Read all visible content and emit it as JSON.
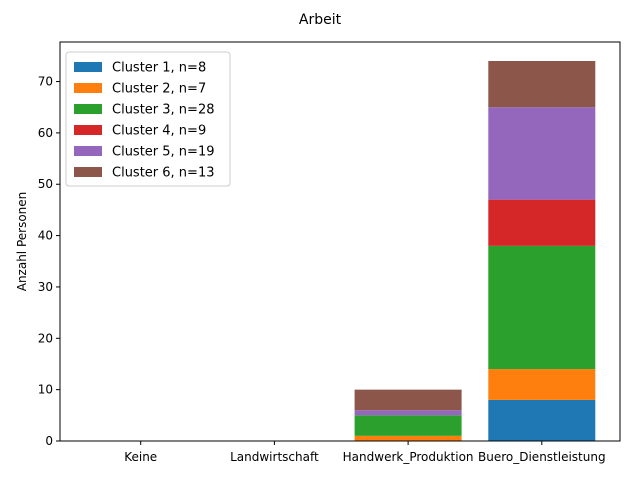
{
  "chart_data": {
    "type": "bar",
    "stacked": true,
    "title": "Arbeit",
    "xlabel": "",
    "ylabel": "Anzahl Personen",
    "categories": [
      "Keine",
      "Landwirtschaft",
      "Handwerk_Produktion",
      "Buero_Dienstleistung"
    ],
    "ylim": [
      0,
      77.7
    ],
    "yticks": [
      0,
      10,
      20,
      30,
      40,
      50,
      60,
      70
    ],
    "grid": false,
    "legend_position": "top-left",
    "series": [
      {
        "name": "Cluster 1, n=8",
        "color": "#1f77b4",
        "values": [
          0,
          0,
          0,
          8
        ]
      },
      {
        "name": "Cluster 2, n=7",
        "color": "#ff7f0e",
        "values": [
          0,
          0,
          1,
          6
        ]
      },
      {
        "name": "Cluster 3, n=28",
        "color": "#2ca02c",
        "values": [
          0,
          0,
          4,
          24
        ]
      },
      {
        "name": "Cluster 4, n=9",
        "color": "#d62728",
        "values": [
          0,
          0,
          0,
          9
        ]
      },
      {
        "name": "Cluster 5, n=19",
        "color": "#9467bd",
        "values": [
          0,
          0,
          1,
          18
        ]
      },
      {
        "name": "Cluster 6, n=13",
        "color": "#8c564b",
        "values": [
          0,
          0,
          4,
          9
        ]
      }
    ]
  }
}
